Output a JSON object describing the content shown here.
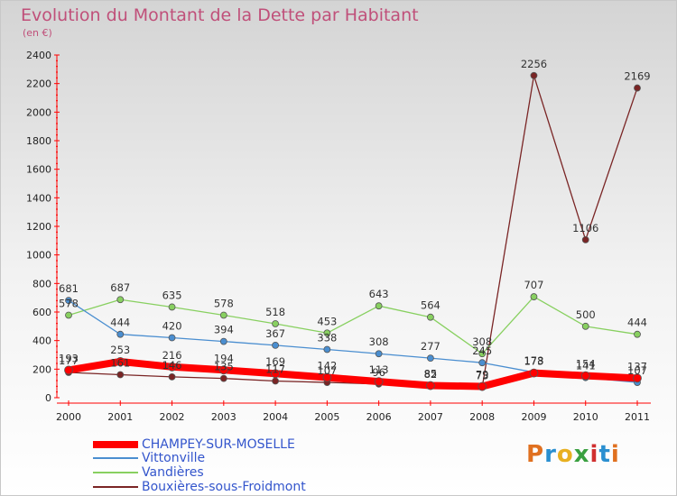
{
  "header": {
    "title": "Evolution du Montant de la Dette par Habitant",
    "subtitle": "(en €)"
  },
  "logo": {
    "text": "Proxiti",
    "colors": [
      "#e07020",
      "#2a8fd0",
      "#e8b020",
      "#3aa040",
      "#d03030",
      "#2a8fd0",
      "#e07020"
    ]
  },
  "chart_data": {
    "type": "line",
    "title": "Evolution du Montant de la Dette par Habitant",
    "subtitle": "(en €)",
    "x": [
      "2000",
      "2001",
      "2002",
      "2003",
      "2004",
      "2005",
      "2006",
      "2007",
      "2008",
      "2009",
      "2010",
      "2011"
    ],
    "ylim": [
      0,
      2400
    ],
    "yticks": [
      0,
      200,
      400,
      600,
      800,
      1000,
      1200,
      1400,
      1600,
      1800,
      2000,
      2200,
      2400
    ],
    "grid": false,
    "legend_position": "bottom-left",
    "series": [
      {
        "name": "CHAMPEY-SUR-MOSELLE",
        "color": "#ff0000",
        "emphasis": true,
        "values": [
          193,
          253,
          216,
          194,
          169,
          142,
          113,
          85,
          79,
          173,
          154,
          137
        ],
        "labels": [
          "193",
          "253",
          "216",
          "194",
          "169",
          "142",
          "113",
          "85",
          "79",
          "173",
          "154",
          "137"
        ]
      },
      {
        "name": "Vittonville",
        "color": "#4a8ed0",
        "values": [
          681,
          444,
          420,
          394,
          367,
          338,
          308,
          277,
          245,
          178,
          141,
          107
        ],
        "labels": [
          "681",
          "444",
          "420",
          "394",
          "367",
          "338",
          "308",
          "277",
          "245",
          "178",
          "141",
          "107"
        ]
      },
      {
        "name": "Vandières",
        "color": "#88d060",
        "values": [
          578,
          687,
          635,
          578,
          518,
          453,
          643,
          564,
          308,
          707,
          500,
          444
        ],
        "labels": [
          "578",
          "687",
          "635",
          "578",
          "518",
          "453",
          "643",
          "564",
          "308",
          "707",
          "500",
          "444"
        ]
      },
      {
        "name": "Bouxières-sous-Froidmont",
        "color": "#7a2525",
        "values": [
          177,
          161,
          146,
          135,
          117,
          107,
          96,
          82,
          73,
          2256,
          1106,
          2169
        ],
        "labels": [
          "177",
          "161",
          "146",
          "135",
          "117",
          "107",
          "96",
          "82",
          "73",
          "2256",
          "1106",
          "2169"
        ]
      }
    ]
  }
}
